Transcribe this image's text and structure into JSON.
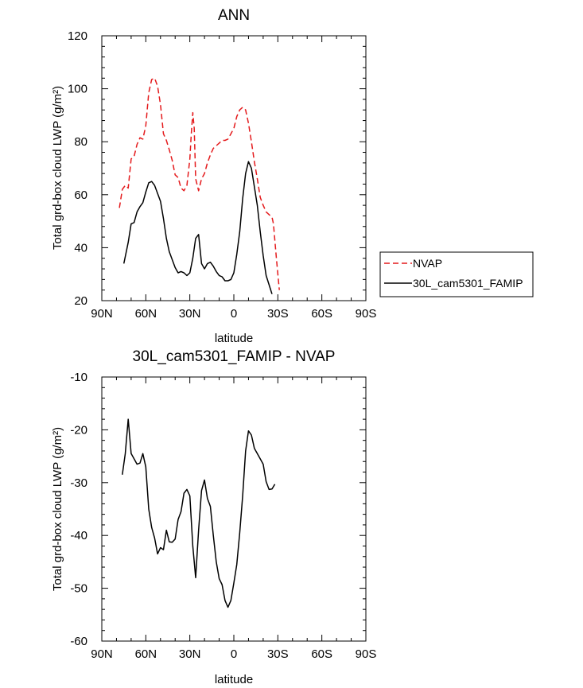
{
  "chart_data": [
    {
      "type": "line",
      "title": "ANN",
      "xlabel": "latitude",
      "ylabel": "Total grd-box cloud LWP (g/m²)",
      "xlim": [
        90,
        -90
      ],
      "ylim": [
        20,
        120
      ],
      "xticks": [
        {
          "value": 90,
          "label": "90N"
        },
        {
          "value": 60,
          "label": "60N"
        },
        {
          "value": 30,
          "label": "30N"
        },
        {
          "value": 0,
          "label": "0"
        },
        {
          "value": -30,
          "label": "30S"
        },
        {
          "value": -60,
          "label": "60S"
        },
        {
          "value": -90,
          "label": "90S"
        }
      ],
      "yticks": [
        20,
        40,
        60,
        80,
        100,
        120
      ],
      "legend_position": "right",
      "series": [
        {
          "name": "NVAP",
          "color": "#e41a1c",
          "dash": true,
          "points": [
            [
              78,
              55
            ],
            [
              76,
              62
            ],
            [
              74,
              63.5
            ],
            [
              72,
              62.5
            ],
            [
              70,
              73.5
            ],
            [
              68,
              74.5
            ],
            [
              66,
              79
            ],
            [
              64,
              81.5
            ],
            [
              62,
              81
            ],
            [
              60,
              86
            ],
            [
              58,
              98.5
            ],
            [
              56,
              103.5
            ],
            [
              54,
              104
            ],
            [
              52,
              101
            ],
            [
              50,
              94
            ],
            [
              48,
              83
            ],
            [
              46,
              80.5
            ],
            [
              44,
              77
            ],
            [
              42,
              73
            ],
            [
              40,
              67.5
            ],
            [
              38,
              66.5
            ],
            [
              36,
              62.5
            ],
            [
              34,
              61.5
            ],
            [
              32,
              63.5
            ],
            [
              30,
              73.5
            ],
            [
              29,
              83
            ],
            [
              28,
              91
            ],
            [
              27,
              85
            ],
            [
              26,
              66
            ],
            [
              24,
              61.5
            ],
            [
              22,
              66
            ],
            [
              20,
              68
            ],
            [
              18,
              72
            ],
            [
              16,
              75
            ],
            [
              14,
              77.5
            ],
            [
              12,
              78.5
            ],
            [
              10,
              79.5
            ],
            [
              8,
              80.5
            ],
            [
              6,
              80.5
            ],
            [
              4,
              81
            ],
            [
              2,
              83
            ],
            [
              0,
              85
            ],
            [
              -2,
              89.5
            ],
            [
              -4,
              92
            ],
            [
              -6,
              93
            ],
            [
              -8,
              92
            ],
            [
              -10,
              87
            ],
            [
              -12,
              80
            ],
            [
              -14,
              72.5
            ],
            [
              -16,
              66
            ],
            [
              -18,
              59
            ],
            [
              -20,
              56
            ],
            [
              -22,
              53.5
            ],
            [
              -24,
              52.5
            ],
            [
              -26,
              51.5
            ],
            [
              -27,
              49
            ],
            [
              -29,
              36
            ],
            [
              -31,
              24
            ]
          ]
        },
        {
          "name": "30L_cam5301_FAMIP",
          "color": "#000000",
          "dash": false,
          "points": [
            [
              75,
              34
            ],
            [
              72,
              42
            ],
            [
              70,
              49
            ],
            [
              68,
              49.5
            ],
            [
              66,
              53.5
            ],
            [
              64,
              55.5
            ],
            [
              62,
              57
            ],
            [
              60,
              61
            ],
            [
              58,
              64.5
            ],
            [
              56,
              65
            ],
            [
              54,
              63.5
            ],
            [
              52,
              60.5
            ],
            [
              50,
              57.5
            ],
            [
              48,
              51
            ],
            [
              46,
              43.5
            ],
            [
              44,
              38.5
            ],
            [
              42,
              35.5
            ],
            [
              40,
              32.5
            ],
            [
              38,
              30.5
            ],
            [
              36,
              31
            ],
            [
              34,
              30.5
            ],
            [
              32,
              29.5
            ],
            [
              30,
              30.5
            ],
            [
              28,
              36
            ],
            [
              26,
              43.5
            ],
            [
              24,
              45
            ],
            [
              22,
              34
            ],
            [
              20,
              32
            ],
            [
              18,
              34
            ],
            [
              16,
              34.5
            ],
            [
              14,
              33
            ],
            [
              12,
              31
            ],
            [
              10,
              29.5
            ],
            [
              8,
              29
            ],
            [
              6,
              27.5
            ],
            [
              4,
              27.5
            ],
            [
              2,
              28
            ],
            [
              0,
              30.5
            ],
            [
              -2,
              37.5
            ],
            [
              -4,
              46
            ],
            [
              -6,
              58.5
            ],
            [
              -8,
              68
            ],
            [
              -10,
              72.5
            ],
            [
              -12,
              70
            ],
            [
              -14,
              63
            ],
            [
              -16,
              56
            ],
            [
              -18,
              46
            ],
            [
              -20,
              37
            ],
            [
              -22,
              29.5
            ],
            [
              -24,
              26
            ],
            [
              -26,
              22.5
            ]
          ]
        }
      ]
    },
    {
      "type": "line",
      "title": "30L_cam5301_FAMIP - NVAP",
      "xlabel": "latitude",
      "ylabel": "Total grd-box cloud LWP (g/m²)",
      "xlim": [
        90,
        -90
      ],
      "ylim": [
        -60,
        -10
      ],
      "xticks": [
        {
          "value": 90,
          "label": "90N"
        },
        {
          "value": 60,
          "label": "60N"
        },
        {
          "value": 30,
          "label": "30N"
        },
        {
          "value": 0,
          "label": "0"
        },
        {
          "value": -30,
          "label": "30S"
        },
        {
          "value": -60,
          "label": "60S"
        },
        {
          "value": -90,
          "label": "90S"
        }
      ],
      "yticks": [
        -60,
        -50,
        -40,
        -30,
        -20,
        -10
      ],
      "series": [
        {
          "name": "",
          "color": "#000000",
          "dash": false,
          "points": [
            [
              76,
              -28.5
            ],
            [
              74,
              -24.5
            ],
            [
              72,
              -18
            ],
            [
              70,
              -24.5
            ],
            [
              68,
              -25.5
            ],
            [
              66,
              -26.5
            ],
            [
              64,
              -26.3
            ],
            [
              62,
              -24.5
            ],
            [
              60,
              -27
            ],
            [
              58,
              -35
            ],
            [
              56,
              -38.5
            ],
            [
              54,
              -40.5
            ],
            [
              52,
              -43.5
            ],
            [
              50,
              -42.3
            ],
            [
              48,
              -42.7
            ],
            [
              46,
              -39
            ],
            [
              44,
              -41.2
            ],
            [
              42,
              -41.3
            ],
            [
              40,
              -40.7
            ],
            [
              38,
              -37
            ],
            [
              36,
              -35.5
            ],
            [
              34,
              -32
            ],
            [
              32,
              -31.3
            ],
            [
              30,
              -32.5
            ],
            [
              28,
              -42
            ],
            [
              26,
              -48
            ],
            [
              24,
              -39
            ],
            [
              22,
              -31.5
            ],
            [
              20,
              -29.5
            ],
            [
              18,
              -33
            ],
            [
              16,
              -34.5
            ],
            [
              14,
              -40
            ],
            [
              12,
              -45
            ],
            [
              10,
              -48.2
            ],
            [
              8,
              -49.3
            ],
            [
              6,
              -52.3
            ],
            [
              4,
              -53.6
            ],
            [
              2,
              -52.3
            ],
            [
              0,
              -49
            ],
            [
              -2,
              -45.5
            ],
            [
              -4,
              -39.5
            ],
            [
              -6,
              -32.5
            ],
            [
              -8,
              -24
            ],
            [
              -10,
              -20.2
            ],
            [
              -12,
              -21
            ],
            [
              -14,
              -23.5
            ],
            [
              -16,
              -24.5
            ],
            [
              -18,
              -25.5
            ],
            [
              -20,
              -26.5
            ],
            [
              -22,
              -29.8
            ],
            [
              -24,
              -31.3
            ],
            [
              -26,
              -31.2
            ],
            [
              -28,
              -30.3
            ]
          ]
        }
      ]
    }
  ]
}
